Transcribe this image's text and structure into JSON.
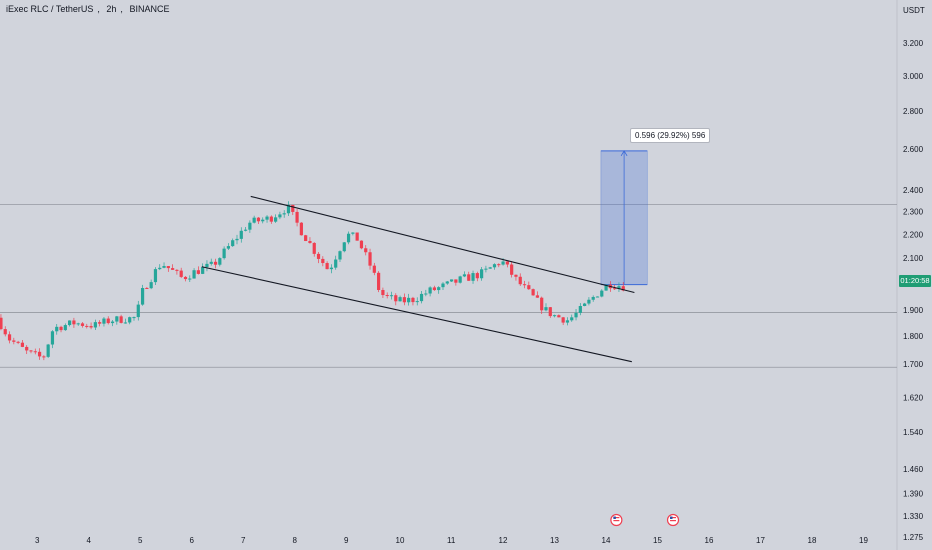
{
  "header": {
    "symbol": "iExec RLC / TetherUS",
    "interval": "2h",
    "exchange": "BINANCE",
    "separator": ","
  },
  "axis": {
    "currency": "USDT"
  },
  "price_label": {
    "value": "01:20:58",
    "color": "#1f9d74"
  },
  "measure": {
    "label": "0.596 (29.92%) 596",
    "color": "#3d6bd8"
  },
  "colors": {
    "up": "#26a69a",
    "down": "#ef3f51",
    "background": "#d1d4dc",
    "line": "#131722"
  },
  "events": [
    {
      "icon": "us-flag-icon",
      "day": 14.25
    },
    {
      "icon": "us-flag-icon",
      "day": 15.35
    }
  ],
  "chart_data": {
    "type": "candlestick",
    "x_axis": {
      "ticks": [
        "3",
        "4",
        "5",
        "6",
        "7",
        "8",
        "9",
        "10",
        "11",
        "12",
        "13",
        "14",
        "15",
        "16",
        "17",
        "18",
        "19"
      ],
      "range": [
        2.3,
        19.6
      ]
    },
    "y_axis": {
      "scale": "log",
      "ticks": [
        "3.200",
        "3.000",
        "2.800",
        "2.600",
        "2.400",
        "2.300",
        "2.200",
        "2.100",
        "2.000",
        "1.900",
        "1.800",
        "1.700",
        "1.620",
        "1.540",
        "1.460",
        "1.390",
        "1.330",
        "1.275"
      ],
      "range": [
        1.25,
        3.5
      ]
    },
    "horizontal_lines": [
      2.332,
      1.89,
      1.692
    ],
    "channel": {
      "upper": [
        [
          7.15,
          2.37
        ],
        [
          14.6,
          1.965
        ]
      ],
      "lower": [
        [
          6.2,
          2.065
        ],
        [
          14.55,
          1.708
        ]
      ]
    },
    "measure_box": {
      "x": [
        13.95,
        14.85
      ],
      "y": [
        1.995,
        2.591
      ]
    },
    "path": [
      [
        2.3,
        1.87
      ],
      [
        2.55,
        1.79
      ],
      [
        2.9,
        1.74
      ],
      [
        3.2,
        1.72
      ],
      [
        3.4,
        1.83
      ],
      [
        3.8,
        1.85
      ],
      [
        4.2,
        1.84
      ],
      [
        4.5,
        1.86
      ],
      [
        5.0,
        1.87
      ],
      [
        5.15,
        1.98
      ],
      [
        5.5,
        2.08
      ],
      [
        5.9,
        2.02
      ],
      [
        6.2,
        2.05
      ],
      [
        6.5,
        2.07
      ],
      [
        6.9,
        2.17
      ],
      [
        7.2,
        2.25
      ],
      [
        7.6,
        2.27
      ],
      [
        7.95,
        2.32
      ],
      [
        8.2,
        2.22
      ],
      [
        8.5,
        2.12
      ],
      [
        8.75,
        2.05
      ],
      [
        9.1,
        2.2
      ],
      [
        9.3,
        2.18
      ],
      [
        9.6,
        2.05
      ],
      [
        9.75,
        1.96
      ],
      [
        10.1,
        1.93
      ],
      [
        10.4,
        1.94
      ],
      [
        10.7,
        1.97
      ],
      [
        11.0,
        1.99
      ],
      [
        11.4,
        2.02
      ],
      [
        11.75,
        2.04
      ],
      [
        12.1,
        2.09
      ],
      [
        12.4,
        2.01
      ],
      [
        12.7,
        1.95
      ],
      [
        12.95,
        1.9
      ],
      [
        13.1,
        1.88
      ],
      [
        13.4,
        1.86
      ],
      [
        13.7,
        1.91
      ],
      [
        14.0,
        1.97
      ],
      [
        14.2,
        2.0
      ],
      [
        14.45,
        1.99
      ]
    ]
  }
}
